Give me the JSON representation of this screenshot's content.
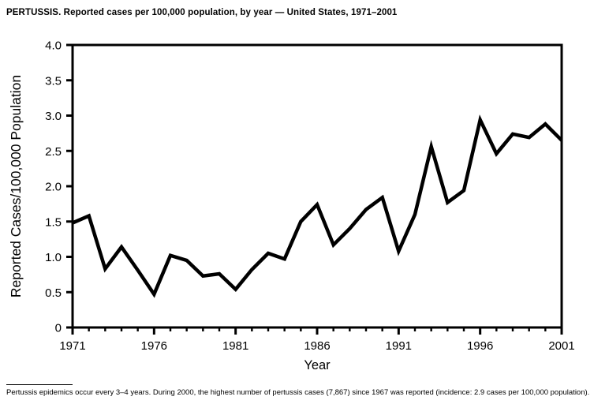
{
  "title": "PERTUSSIS. Reported cases per 100,000 population, by year — United States, 1971–2001",
  "footnote": "Pertussis epidemics occur every 3–4 years. During 2000, the highest number of pertussis cases (7,867) since 1967 was reported (incidence: 2.9 cases per 100,000 population).",
  "chart_data": {
    "type": "line",
    "title": "PERTUSSIS. Reported cases per 100,000 population, by year — United States, 1971–2001",
    "xlabel": "Year",
    "ylabel": "Reported Cases/100,000 Population",
    "x": [
      1971,
      1972,
      1973,
      1974,
      1975,
      1976,
      1977,
      1978,
      1979,
      1980,
      1981,
      1982,
      1983,
      1984,
      1985,
      1986,
      1987,
      1988,
      1989,
      1990,
      1991,
      1992,
      1993,
      1994,
      1995,
      1996,
      1997,
      1998,
      1999,
      2000,
      2001
    ],
    "values": [
      1.48,
      1.58,
      0.83,
      1.14,
      0.81,
      0.47,
      1.02,
      0.95,
      0.73,
      0.76,
      0.54,
      0.82,
      1.05,
      0.97,
      1.5,
      1.74,
      1.17,
      1.4,
      1.67,
      1.84,
      1.08,
      1.6,
      2.56,
      1.77,
      1.94,
      2.94,
      2.46,
      2.74,
      2.69,
      2.88,
      2.65
    ],
    "xlim": [
      1971,
      2001
    ],
    "ylim": [
      0,
      4.0
    ],
    "x_major_ticks": [
      1971,
      1976,
      1981,
      1986,
      1991,
      1996,
      2001
    ],
    "y_ticks": [
      0,
      0.5,
      1.0,
      1.5,
      2.0,
      2.5,
      3.0,
      3.5,
      4.0
    ],
    "y_tick_labels": [
      "0",
      "0.5",
      "1.0",
      "1.5",
      "2.0",
      "2.5",
      "3.0",
      "3.5",
      "4.0"
    ],
    "grid": false,
    "legend": "none",
    "line_color": "#000000",
    "axis_color": "#000000",
    "background_color": "#ffffff"
  }
}
